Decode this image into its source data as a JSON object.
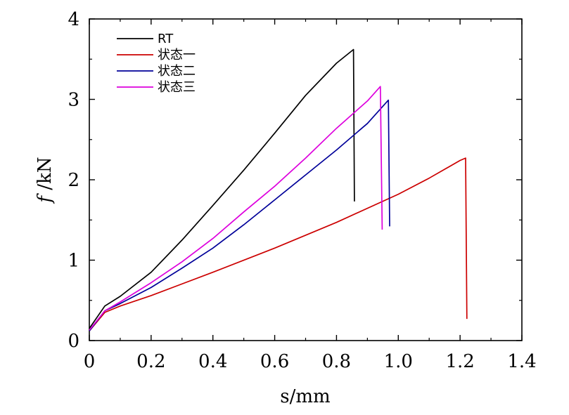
{
  "chart_data": {
    "type": "line",
    "xlabel": "s/mm",
    "ylabel": {
      "italic": "f",
      "rest": " /kN"
    },
    "xlim": [
      0,
      1.4
    ],
    "ylim": [
      0,
      4
    ],
    "xticks": [
      0,
      0.2,
      0.4,
      0.6,
      0.8,
      1.0,
      1.2,
      1.4
    ],
    "xtick_labels": [
      "0",
      "0.2",
      "0.4",
      "0.6",
      "0.8",
      "1.0",
      "1.2",
      "1.4"
    ],
    "yticks": [
      0,
      1,
      2,
      3,
      4
    ],
    "ytick_labels": [
      "0",
      "1",
      "2",
      "3",
      "4"
    ],
    "grid": false,
    "legend_position": "top-left",
    "series": [
      {
        "name": "RT",
        "color": "#000000",
        "points": [
          [
            0,
            0.15
          ],
          [
            0.05,
            0.43
          ],
          [
            0.1,
            0.55
          ],
          [
            0.2,
            0.85
          ],
          [
            0.3,
            1.25
          ],
          [
            0.4,
            1.68
          ],
          [
            0.5,
            2.12
          ],
          [
            0.6,
            2.58
          ],
          [
            0.7,
            3.05
          ],
          [
            0.8,
            3.45
          ],
          [
            0.855,
            3.62
          ],
          [
            0.858,
            1.73
          ]
        ]
      },
      {
        "name": "状态一",
        "color": "#cc0000",
        "points": [
          [
            0,
            0.12
          ],
          [
            0.05,
            0.35
          ],
          [
            0.1,
            0.43
          ],
          [
            0.2,
            0.56
          ],
          [
            0.4,
            0.85
          ],
          [
            0.6,
            1.15
          ],
          [
            0.8,
            1.47
          ],
          [
            1.0,
            1.82
          ],
          [
            1.1,
            2.02
          ],
          [
            1.2,
            2.24
          ],
          [
            1.218,
            2.27
          ],
          [
            1.222,
            0.27
          ]
        ]
      },
      {
        "name": "状态二",
        "color": "#000099",
        "points": [
          [
            0,
            0.12
          ],
          [
            0.05,
            0.37
          ],
          [
            0.1,
            0.46
          ],
          [
            0.2,
            0.66
          ],
          [
            0.3,
            0.9
          ],
          [
            0.4,
            1.15
          ],
          [
            0.5,
            1.44
          ],
          [
            0.6,
            1.75
          ],
          [
            0.7,
            2.06
          ],
          [
            0.8,
            2.37
          ],
          [
            0.9,
            2.7
          ],
          [
            0.968,
            2.99
          ],
          [
            0.972,
            1.42
          ]
        ]
      },
      {
        "name": "状态三",
        "color": "#dd00dd",
        "points": [
          [
            0,
            0.13
          ],
          [
            0.05,
            0.37
          ],
          [
            0.1,
            0.48
          ],
          [
            0.2,
            0.72
          ],
          [
            0.3,
            0.98
          ],
          [
            0.4,
            1.27
          ],
          [
            0.5,
            1.6
          ],
          [
            0.6,
            1.92
          ],
          [
            0.7,
            2.27
          ],
          [
            0.8,
            2.64
          ],
          [
            0.9,
            2.98
          ],
          [
            0.942,
            3.16
          ],
          [
            0.948,
            1.38
          ]
        ]
      }
    ]
  }
}
